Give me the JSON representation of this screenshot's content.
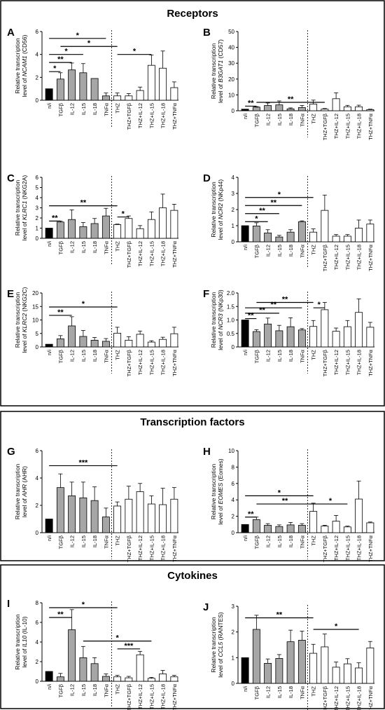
{
  "sections": [
    {
      "title": "Receptors"
    },
    {
      "title": "Transcription factors"
    },
    {
      "title": "Cytokines"
    }
  ],
  "colors": {
    "black": "#000000",
    "gray": "#a6a6a6",
    "white": "#ffffff"
  },
  "categories": [
    "n/i",
    "TGFβ",
    "IL-12",
    "IL-15",
    "IL-18",
    "TNFα",
    "THZ",
    "THZ+TGFβ",
    "THZ+IL-12",
    "THZ+IL-15",
    "THZ+IL-18",
    "THZ+TNFα"
  ],
  "fill_groups": [
    "black",
    "gray",
    "gray",
    "gray",
    "gray",
    "gray",
    "white",
    "white",
    "white",
    "white",
    "white",
    "white"
  ],
  "chart_data": [
    {
      "letter": "A",
      "type": "bar",
      "ylabel_l1": "Relative transcription",
      "ylabel_pre": "level of ",
      "ylabel_gene": "NCAM1",
      "ylabel_post": " (CD56)",
      "ylim": [
        0,
        6
      ],
      "yticks": [
        0,
        2,
        4,
        6
      ],
      "values": [
        1,
        1.85,
        2.65,
        2.4,
        1.9,
        0.38,
        0.38,
        0.38,
        0.85,
        3.05,
        2.8,
        1.1
      ],
      "errors": [
        0,
        0.55,
        0.6,
        0.8,
        0,
        0.25,
        0.25,
        0.2,
        0.3,
        0.9,
        1.5,
        0.5
      ],
      "annotations": [
        {
          "from": 0,
          "to": 1,
          "y": 2.5,
          "label": "*"
        },
        {
          "from": 0,
          "to": 2,
          "y": 3.3,
          "label": "**"
        },
        {
          "from": 0,
          "to": 3,
          "y": 4.0,
          "label": "*"
        },
        {
          "from": 1,
          "to": 6,
          "y": 4.7,
          "label": "*"
        },
        {
          "from": 0,
          "to": 5,
          "y": 5.4,
          "label": "*"
        },
        {
          "from": 6,
          "to": 9,
          "y": 4.0,
          "label": "*"
        }
      ]
    },
    {
      "letter": "B",
      "type": "bar",
      "ylabel_l1": "Relative transcription",
      "ylabel_pre": "level of ",
      "ylabel_gene": "B3GAT1",
      "ylabel_post": " (CD57)",
      "ylim": [
        0,
        50
      ],
      "yticks": [
        0,
        10,
        20,
        30,
        40,
        50
      ],
      "values": [
        1,
        2.3,
        3.3,
        3.7,
        1.2,
        2,
        4.2,
        1,
        7.6,
        2.5,
        2.5,
        0.7
      ],
      "errors": [
        0,
        0.3,
        1.6,
        2.5,
        0.6,
        1.3,
        2.5,
        0.4,
        3.7,
        0.9,
        1,
        0.3
      ],
      "annotations": [
        {
          "from": 0,
          "to": 1,
          "y": 2.9,
          "label": "**"
        },
        {
          "from": 1,
          "to": 7,
          "y": 5.3,
          "label": "**"
        }
      ]
    },
    {
      "letter": "C",
      "type": "bar",
      "ylabel_l1": "Relative transcription",
      "ylabel_pre": "level of ",
      "ylabel_gene": "KLRC1",
      "ylabel_post": " (NKG2A)",
      "ylim": [
        0,
        6
      ],
      "yticks": [
        0,
        1,
        2,
        3,
        4,
        5,
        6
      ],
      "values": [
        1,
        1.6,
        1.85,
        1.15,
        1.45,
        2.2,
        1.35,
        1.95,
        0.95,
        1.85,
        3,
        2.75
      ],
      "errors": [
        0,
        0.1,
        0.95,
        0.4,
        0.5,
        0.75,
        0.05,
        0.25,
        0.3,
        0.75,
        1.35,
        0.6
      ],
      "annotations": [
        {
          "from": 0,
          "to": 1,
          "y": 1.7,
          "label": "**"
        },
        {
          "from": 0,
          "to": 6,
          "y": 3.2,
          "label": "**"
        },
        {
          "from": 6,
          "to": 7,
          "y": 2.1,
          "label": "*"
        }
      ]
    },
    {
      "letter": "D",
      "type": "bar",
      "ylabel_l1": "Relative transcription",
      "ylabel_pre": "level of ",
      "ylabel_gene": "NCR2",
      "ylabel_post": " (NKp44)",
      "ylim": [
        0,
        4
      ],
      "yticks": [
        0,
        1,
        2,
        3,
        4
      ],
      "values": [
        1,
        0.98,
        0.55,
        0.3,
        0.6,
        1.25,
        0.6,
        1.95,
        0.35,
        0.35,
        0.85,
        1.1
      ],
      "errors": [
        0,
        0.2,
        0.2,
        0.1,
        0.15,
        0.05,
        0.2,
        0.95,
        0.1,
        0.1,
        0.5,
        0.25
      ],
      "annotations": [
        {
          "from": 0,
          "to": 2,
          "y": 1.25,
          "label": "*"
        },
        {
          "from": 0,
          "to": 3,
          "y": 1.75,
          "label": "**"
        },
        {
          "from": 0,
          "to": 5,
          "y": 2.25,
          "label": "**"
        },
        {
          "from": 0,
          "to": 6,
          "y": 2.75,
          "label": "*"
        }
      ]
    },
    {
      "letter": "E",
      "type": "bar",
      "ylabel_l1": "Relative transcription",
      "ylabel_pre": "level of ",
      "ylabel_gene": "KLRC2",
      "ylabel_post": " (NKG2C)",
      "ylim": [
        0,
        20
      ],
      "yticks": [
        0,
        5,
        10,
        15,
        20
      ],
      "values": [
        1,
        3,
        7.8,
        3.9,
        2.5,
        2.1,
        5.1,
        2.5,
        4.7,
        1.8,
        2.8,
        4.9
      ],
      "errors": [
        0,
        1.2,
        3.4,
        2.2,
        1,
        1,
        2.2,
        1.3,
        1.2,
        0.5,
        0.8,
        2.4
      ],
      "annotations": [
        {
          "from": 0,
          "to": 2,
          "y": 11.7,
          "label": "**"
        },
        {
          "from": 0,
          "to": 6,
          "y": 14.8,
          "label": "*"
        }
      ]
    },
    {
      "letter": "F",
      "type": "bar",
      "ylabel_l1": "Relative transcription",
      "ylabel_pre": "level of ",
      "ylabel_gene": "NCR3",
      "ylabel_post": " (NKp30)",
      "ylim": [
        0,
        2.0
      ],
      "yticks": [
        0,
        0.5,
        1.0,
        1.5,
        2.0
      ],
      "ytick_labels": [
        "0",
        "0.5",
        "1.0",
        "1.5",
        "2.0"
      ],
      "values": [
        1,
        0.57,
        0.85,
        0.6,
        0.75,
        0.63,
        0.76,
        1.38,
        0.58,
        0.75,
        1.28,
        0.73
      ],
      "errors": [
        0,
        0.07,
        0.22,
        0.2,
        0.33,
        0.05,
        0.22,
        0.27,
        0.12,
        0.23,
        0.5,
        0.18
      ],
      "annotations": [
        {
          "from": 0,
          "to": 1,
          "y": 1.05,
          "label": "**"
        },
        {
          "from": 0,
          "to": 3,
          "y": 1.25,
          "label": "**"
        },
        {
          "from": 0,
          "to": 5,
          "y": 1.45,
          "label": "**"
        },
        {
          "from": 1,
          "to": 6,
          "y": 1.65,
          "label": "**"
        },
        {
          "from": 6,
          "to": 7,
          "y": 1.45,
          "label": "*"
        }
      ]
    },
    {
      "letter": "G",
      "type": "bar",
      "ylabel_l1": "Relative transcription",
      "ylabel_pre": "level of ",
      "ylabel_gene": "AHR",
      "ylabel_post": " (AHR)",
      "ylim": [
        0,
        6
      ],
      "yticks": [
        0,
        2,
        4,
        6
      ],
      "values": [
        1,
        3.3,
        2.7,
        2.55,
        2.35,
        1.15,
        1.95,
        2.45,
        3,
        2.1,
        2.05,
        2.45
      ],
      "errors": [
        0,
        1,
        1,
        1.15,
        1,
        0.65,
        0.3,
        0.95,
        0.6,
        0.6,
        1.2,
        0.85
      ],
      "annotations": [
        {
          "from": 0,
          "to": 6,
          "y": 4.9,
          "label": "***"
        }
      ]
    },
    {
      "letter": "H",
      "type": "bar",
      "ylabel_l1": "Relative transcription",
      "ylabel_pre": "level of ",
      "ylabel_gene": "EOMES",
      "ylabel_post": " (Eomes)",
      "ylim": [
        0,
        10
      ],
      "yticks": [
        0,
        2,
        4,
        6,
        8,
        10
      ],
      "values": [
        1,
        1.6,
        0.9,
        0.75,
        0.95,
        0.9,
        2.6,
        0.8,
        1.4,
        0.7,
        4.1,
        1.2
      ],
      "errors": [
        0,
        0.3,
        0.2,
        0.2,
        0.3,
        0.2,
        1,
        0.1,
        0.7,
        0.1,
        2.2,
        0.1
      ],
      "annotations": [
        {
          "from": 0,
          "to": 1,
          "y": 1.9,
          "label": "**"
        },
        {
          "from": 1,
          "to": 6,
          "y": 3.5,
          "label": "**"
        },
        {
          "from": 0,
          "to": 6,
          "y": 4.5,
          "label": "*"
        },
        {
          "from": 6,
          "to": 9,
          "y": 3.5,
          "label": "*"
        }
      ]
    },
    {
      "letter": "I",
      "type": "bar",
      "ylabel_l1": "Relative transcription",
      "ylabel_pre": "level of ",
      "ylabel_gene": "IL10",
      "ylabel_post": " (IL-10)",
      "ylim": [
        0,
        8
      ],
      "yticks": [
        0,
        2,
        4,
        6,
        8
      ],
      "values": [
        1,
        0.45,
        5.25,
        2.4,
        1.8,
        0.5,
        0.45,
        0.35,
        2.7,
        0.3,
        0.75,
        0.45
      ],
      "errors": [
        0,
        0.35,
        2.05,
        1.15,
        0.6,
        0.25,
        0.15,
        0.15,
        0.35,
        0.1,
        0.35,
        0.15
      ],
      "annotations": [
        {
          "from": 0,
          "to": 2,
          "y": 6.5,
          "label": "**"
        },
        {
          "from": 0,
          "to": 6,
          "y": 7.5,
          "label": "*"
        },
        {
          "from": 6,
          "to": 8,
          "y": 3.3,
          "label": "***"
        },
        {
          "from": 3,
          "to": 9,
          "y": 4.1,
          "label": "*"
        }
      ]
    },
    {
      "letter": "J",
      "type": "bar",
      "ylabel_l1": "Relative transcription",
      "ylabel_pre": "level of ",
      "ylabel_gene": "CCL5",
      "ylabel_post": " (RANTES)",
      "ylim": [
        0,
        3
      ],
      "yticks": [
        0,
        1,
        2,
        3
      ],
      "values": [
        1,
        2.1,
        0.78,
        0.97,
        1.62,
        1.68,
        1.17,
        1.42,
        0.63,
        0.76,
        0.6,
        1.38
      ],
      "errors": [
        0,
        0.55,
        0.17,
        0.15,
        0.45,
        0.35,
        0.35,
        0.5,
        0.2,
        0.2,
        0.2,
        0.25
      ],
      "annotations": [
        {
          "from": 0,
          "to": 6,
          "y": 2.55,
          "label": "**"
        },
        {
          "from": 6,
          "to": 10,
          "y": 2.1,
          "label": "*"
        }
      ]
    }
  ]
}
